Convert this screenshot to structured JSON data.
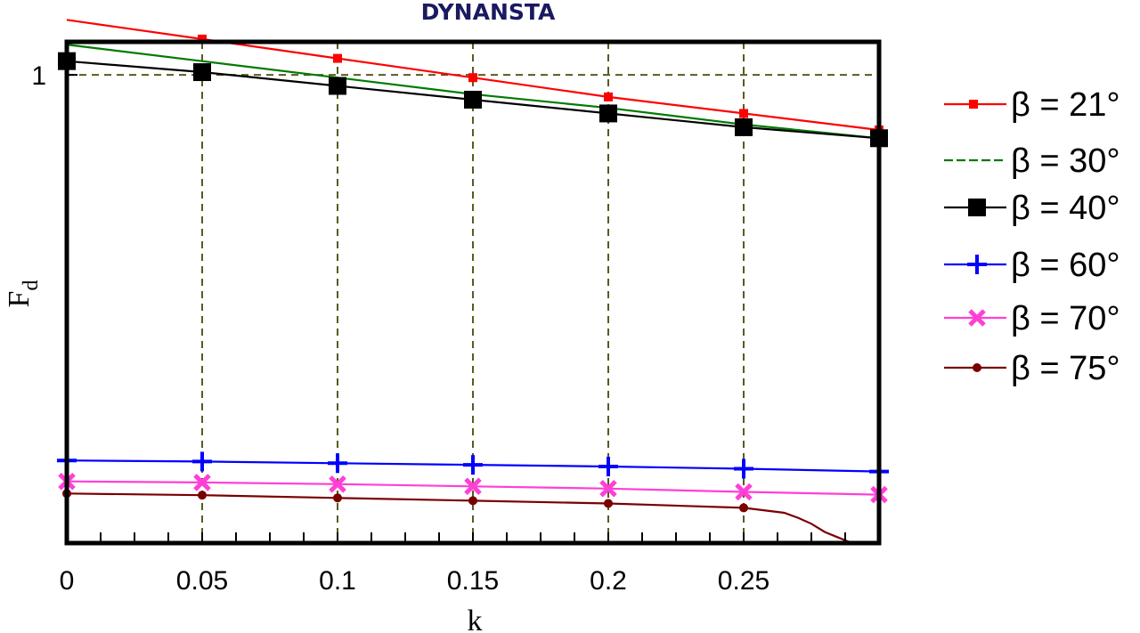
{
  "chart_data": {
    "type": "line",
    "title": "DYNANSTA",
    "xlabel": "k",
    "ylabel": "F",
    "ylabel_sub": "d",
    "xlim": [
      0,
      0.3
    ],
    "ylim": [
      0.15,
      1.06
    ],
    "x_ticks": [
      "0",
      "0.05",
      "0.1",
      "0.15",
      "0.2",
      "0.25"
    ],
    "x_tick_values": [
      0,
      0.05,
      0.1,
      0.15,
      0.2,
      0.25
    ],
    "y_ticks": [
      "1"
    ],
    "y_tick_values": [
      1
    ],
    "grid": true,
    "legend_position": "right",
    "series": [
      {
        "name": "β = 21°",
        "color": "#ff0000",
        "marker": "square-small",
        "x": [
          0,
          0.05,
          0.1,
          0.15,
          0.2,
          0.25,
          0.3
        ],
        "y": [
          1.1,
          1.065,
          1.03,
          0.995,
          0.96,
          0.93,
          0.9
        ],
        "marker_x": [
          0.05,
          0.1,
          0.15,
          0.2,
          0.25,
          0.3
        ]
      },
      {
        "name": "β = 30°",
        "color": "#007a00",
        "marker": "none",
        "x": [
          0,
          0.05,
          0.1,
          0.15,
          0.2,
          0.25,
          0.3
        ],
        "y": [
          1.055,
          1.025,
          0.995,
          0.965,
          0.94,
          0.91,
          0.885
        ],
        "marker_x": []
      },
      {
        "name": "β = 40°",
        "color": "#000000",
        "marker": "square-large",
        "x": [
          0,
          0.05,
          0.1,
          0.15,
          0.2,
          0.25,
          0.3
        ],
        "y": [
          1.025,
          1.005,
          0.98,
          0.955,
          0.93,
          0.905,
          0.885
        ],
        "marker_x": [
          0,
          0.05,
          0.1,
          0.15,
          0.2,
          0.25,
          0.3
        ]
      },
      {
        "name": "β = 60°",
        "color": "#0000ff",
        "marker": "plus",
        "x": [
          0,
          0.05,
          0.1,
          0.15,
          0.2,
          0.25,
          0.3
        ],
        "y": [
          0.3,
          0.298,
          0.295,
          0.292,
          0.289,
          0.285,
          0.28
        ],
        "marker_x": [
          0,
          0.05,
          0.1,
          0.15,
          0.2,
          0.25,
          0.3
        ]
      },
      {
        "name": "β = 70°",
        "color": "#ff3fd6",
        "marker": "x",
        "x": [
          0,
          0.05,
          0.1,
          0.15,
          0.2,
          0.25,
          0.3
        ],
        "y": [
          0.262,
          0.26,
          0.257,
          0.253,
          0.249,
          0.243,
          0.238
        ],
        "marker_x": [
          0,
          0.05,
          0.1,
          0.15,
          0.2,
          0.25,
          0.3
        ]
      },
      {
        "name": "β = 75°",
        "color": "#7a0000",
        "marker": "dot",
        "x": [
          0,
          0.05,
          0.1,
          0.15,
          0.2,
          0.25,
          0.265,
          0.27,
          0.275,
          0.28,
          0.285,
          0.29
        ],
        "y": [
          0.24,
          0.237,
          0.232,
          0.227,
          0.222,
          0.214,
          0.205,
          0.196,
          0.185,
          0.17,
          0.16,
          0.15
        ],
        "marker_x": [
          0,
          0.05,
          0.1,
          0.15,
          0.2,
          0.25
        ]
      }
    ]
  }
}
